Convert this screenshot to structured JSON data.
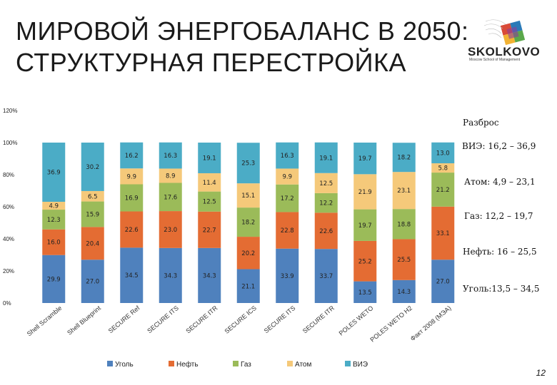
{
  "header": {
    "title_line1": "МИРОВОЙ ЭНЕРГОБАЛАНС В 2050:",
    "title_line2": "СТРУКТУРНАЯ ПЕРЕСТРОЙКА"
  },
  "logo": {
    "name": "SKOLKOVO",
    "subtitle": "Moscow School of Management"
  },
  "notes": {
    "spread_title": "Разброс",
    "renewables": "ВИЭ: 16,2 – 36,9",
    "nuclear": "Атом: 4,9 – 23,1",
    "gas": "Газ: 12,2 – 19,7",
    "oil": "Нефть: 16 – 25,5",
    "coal": "Уголь:13,5 – 34,5"
  },
  "page_number": "12",
  "colors": {
    "coal": "#4f81bd",
    "oil": "#e46c33",
    "gas": "#9bbb59",
    "nuclear": "#f5c97a",
    "renewables": "#4bacc6"
  },
  "chart_data": {
    "type": "bar",
    "stacked": true,
    "categories": [
      "Shell Scramble",
      "Shell Blueprint",
      "SECURE Ref",
      "SECURE ITS",
      "SECURE ITR",
      "SECURE ICS",
      "SECURE ITS",
      "SECURE ITR",
      "POLES WETO",
      "POLES WETO H2",
      "Факт 2008 (МЭА)"
    ],
    "series": [
      {
        "name": "Уголь",
        "color": "#4f81bd",
        "values": [
          29.9,
          27.0,
          34.5,
          34.3,
          34.3,
          21.1,
          33.9,
          33.7,
          13.5,
          14.3,
          27.0
        ]
      },
      {
        "name": "Нефть",
        "color": "#e46c33",
        "values": [
          16.0,
          20.4,
          22.6,
          23.0,
          22.7,
          20.2,
          22.8,
          22.6,
          25.2,
          25.5,
          33.1
        ]
      },
      {
        "name": "Газ",
        "color": "#9bbb59",
        "values": [
          12.3,
          15.9,
          16.9,
          17.6,
          12.5,
          18.2,
          17.2,
          12.2,
          19.7,
          18.8,
          21.2
        ]
      },
      {
        "name": "Атом",
        "color": "#f5c97a",
        "values": [
          4.9,
          6.5,
          9.9,
          8.9,
          11.4,
          15.1,
          9.9,
          12.5,
          21.9,
          23.1,
          5.8
        ]
      },
      {
        "name": "ВИЭ",
        "color": "#4bacc6",
        "values": [
          36.9,
          30.2,
          16.2,
          16.3,
          19.1,
          25.3,
          16.3,
          19.1,
          19.7,
          18.2,
          13.0
        ]
      }
    ],
    "yticks": [
      "0%",
      "20%",
      "40%",
      "60%",
      "80%",
      "100%",
      "120%"
    ],
    "ylim": [
      0,
      120
    ],
    "legend_position": "bottom",
    "grid": false
  }
}
